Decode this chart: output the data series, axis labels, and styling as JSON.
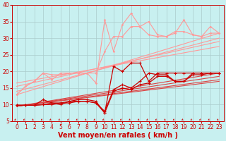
{
  "background_color": "#c8f0f0",
  "grid_color": "#aacccc",
  "xlabel": "Vent moyen/en rafales ( km/h )",
  "xlim": [
    -0.5,
    23.5
  ],
  "ylim": [
    5,
    40
  ],
  "yticks": [
    5,
    10,
    15,
    20,
    25,
    30,
    35,
    40
  ],
  "xticks": [
    0,
    1,
    2,
    3,
    4,
    5,
    6,
    7,
    8,
    9,
    10,
    11,
    12,
    13,
    14,
    15,
    16,
    17,
    18,
    19,
    20,
    21,
    22,
    23
  ],
  "light_trend_lines": [
    [
      [
        0,
        23
      ],
      [
        13.0,
        31.5
      ]
    ],
    [
      [
        0,
        23
      ],
      [
        14.0,
        30.0
      ]
    ],
    [
      [
        0,
        23
      ],
      [
        15.5,
        29.0
      ]
    ],
    [
      [
        0,
        23
      ],
      [
        16.5,
        27.5
      ]
    ]
  ],
  "dark_trend_lines": [
    [
      [
        0,
        23
      ],
      [
        9.5,
        19.5
      ]
    ],
    [
      [
        0,
        23
      ],
      [
        9.5,
        18.5
      ]
    ],
    [
      [
        0,
        23
      ],
      [
        9.5,
        17.5
      ]
    ],
    [
      [
        0,
        23
      ],
      [
        9.5,
        17.0
      ]
    ]
  ],
  "light_jagged": [
    [
      13.0,
      15.5,
      17.0,
      19.5,
      17.5,
      19.5,
      19.5,
      19.5,
      19.5,
      16.5,
      35.5,
      26.0,
      34.0,
      37.5,
      33.5,
      35.0,
      31.0,
      30.5,
      31.5,
      35.5,
      31.0,
      30.5,
      31.5,
      31.5
    ],
    [
      13.0,
      15.5,
      17.0,
      19.5,
      19.0,
      19.0,
      19.5,
      19.5,
      19.5,
      19.5,
      26.0,
      30.5,
      30.5,
      33.5,
      33.5,
      31.0,
      30.5,
      30.5,
      32.0,
      32.0,
      31.0,
      30.5,
      33.5,
      31.5
    ]
  ],
  "dark_jagged": [
    [
      9.8,
      9.8,
      9.8,
      11.5,
      10.5,
      10.0,
      11.0,
      11.5,
      11.5,
      11.0,
      7.5,
      21.5,
      20.0,
      22.5,
      22.5,
      17.0,
      19.5,
      19.5,
      19.5,
      19.5,
      19.5,
      19.5,
      19.5,
      19.5
    ],
    [
      9.8,
      9.8,
      9.8,
      10.0,
      10.5,
      10.5,
      11.0,
      11.0,
      11.0,
      10.5,
      8.0,
      14.5,
      16.0,
      15.0,
      17.0,
      19.5,
      19.0,
      19.0,
      17.0,
      17.0,
      19.5,
      19.5,
      19.5,
      19.5
    ],
    [
      9.8,
      9.8,
      9.8,
      10.0,
      10.0,
      10.5,
      10.5,
      11.0,
      11.0,
      10.5,
      7.5,
      14.0,
      15.0,
      14.5,
      16.0,
      16.5,
      18.5,
      18.5,
      17.0,
      17.0,
      19.0,
      19.0,
      19.5,
      19.5
    ]
  ],
  "line_dark_color": "#cc0000",
  "line_light_color": "#ff9999",
  "line_dark_trend_color": "#dd4444",
  "line_light_trend_color": "#ffbbbb",
  "tick_label_fontsize": 5.5,
  "xlabel_fontsize": 7
}
